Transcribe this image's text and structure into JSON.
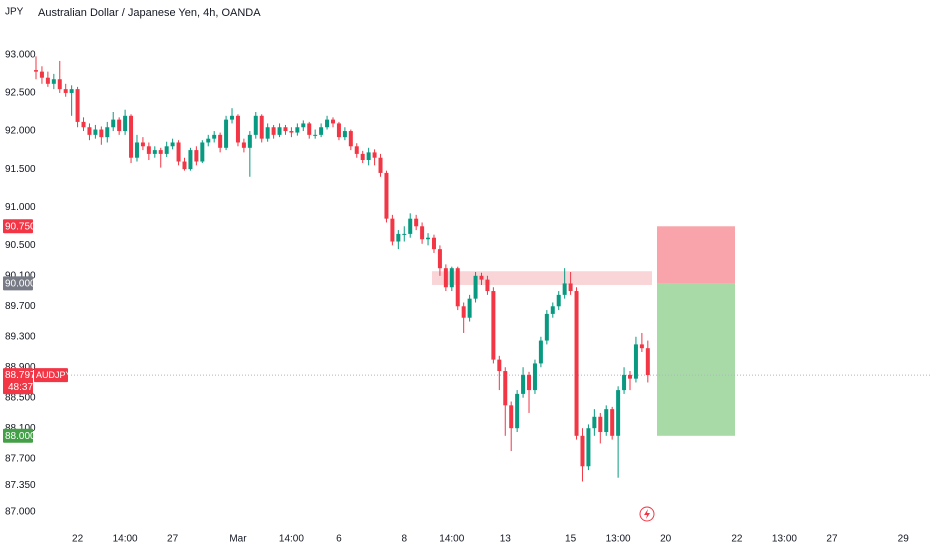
{
  "chart_data": {
    "type": "candlestick",
    "title": "Australian Dollar / Japanese Yen, 4h, OANDA",
    "currency": "JPY",
    "ylim": [
      86.79,
      93.72
    ],
    "yticks": [
      {
        "value": 93,
        "label": "93.000"
      },
      {
        "value": 92.5,
        "label": "92.500"
      },
      {
        "value": 92,
        "label": "92.000"
      },
      {
        "value": 91.5,
        "label": "91.500"
      },
      {
        "value": 91,
        "label": "91.000"
      },
      {
        "value": 90.5,
        "label": "90.500"
      },
      {
        "value": 90.1,
        "label": "90.100"
      },
      {
        "value": 89.7,
        "label": "89.700"
      },
      {
        "value": 89.3,
        "label": "89.300"
      },
      {
        "value": 88.9,
        "label": "88.900"
      },
      {
        "value": 88.5,
        "label": "88.500"
      },
      {
        "value": 88.1,
        "label": "88.100"
      },
      {
        "value": 87.7,
        "label": "87.700"
      },
      {
        "value": 87.35,
        "label": "87.350"
      },
      {
        "value": 87,
        "label": "87.000"
      }
    ],
    "grid": false,
    "up_color": "#089981",
    "down_color": "#f23645",
    "categories": [
      null,
      null,
      null,
      null,
      null,
      null,
      null,
      "22",
      null,
      null,
      null,
      null,
      null,
      null,
      null,
      "14:00",
      null,
      null,
      null,
      null,
      null,
      null,
      null,
      "27",
      null,
      null,
      null,
      null,
      null,
      null,
      null,
      null,
      null,
      null,
      "Mar",
      null,
      null,
      null,
      null,
      null,
      null,
      null,
      null,
      "14:00",
      null,
      null,
      null,
      null,
      null,
      null,
      null,
      "6",
      null,
      null,
      null,
      null,
      null,
      null,
      null,
      null,
      null,
      null,
      "8",
      null,
      null,
      null,
      null,
      null,
      null,
      null,
      "14:00",
      null,
      null,
      null,
      null,
      null,
      null,
      null,
      null,
      "13",
      null,
      null,
      null,
      null,
      null,
      null,
      null,
      null,
      null,
      null,
      "15",
      null,
      null,
      null,
      null,
      null,
      null,
      null,
      "13:00",
      null,
      null,
      null,
      null,
      null,
      null,
      null,
      "20",
      null,
      null,
      null,
      null,
      null,
      null,
      null,
      null,
      null,
      null,
      null,
      "22",
      null,
      null,
      null,
      null,
      null,
      null,
      null,
      "13:00",
      null,
      null,
      null,
      null,
      null,
      null,
      null,
      "27",
      null,
      null,
      null,
      null,
      null,
      null,
      null,
      null,
      null,
      null,
      null,
      "29",
      null,
      null,
      null,
      null
    ],
    "candles": [
      [
        92.8,
        92.98,
        92.68,
        92.78
      ],
      [
        92.78,
        92.85,
        92.62,
        92.7
      ],
      [
        92.7,
        92.78,
        92.58,
        92.62
      ],
      [
        92.62,
        92.75,
        92.55,
        92.68
      ],
      [
        92.68,
        92.92,
        92.5,
        92.55
      ],
      [
        92.55,
        92.62,
        92.45,
        92.5
      ],
      [
        92.5,
        92.6,
        92.2,
        92.55
      ],
      [
        92.55,
        92.58,
        92.05,
        92.12
      ],
      [
        92.12,
        92.18,
        92.0,
        92.05
      ],
      [
        92.05,
        92.1,
        91.88,
        91.95
      ],
      [
        91.95,
        92.08,
        91.9,
        92.02
      ],
      [
        92.02,
        92.06,
        91.82,
        91.92
      ],
      [
        91.92,
        92.12,
        91.85,
        92.05
      ],
      [
        92.05,
        92.25,
        92.0,
        92.15
      ],
      [
        92.15,
        92.18,
        91.95,
        92.0
      ],
      [
        92.0,
        92.28,
        91.95,
        92.2
      ],
      [
        92.2,
        92.22,
        91.58,
        91.65
      ],
      [
        91.65,
        91.95,
        91.6,
        91.85
      ],
      [
        91.85,
        91.92,
        91.75,
        91.8
      ],
      [
        91.8,
        91.85,
        91.62,
        91.7
      ],
      [
        91.7,
        91.8,
        91.65,
        91.75
      ],
      [
        91.75,
        91.78,
        91.52,
        91.7
      ],
      [
        91.7,
        91.86,
        91.66,
        91.8
      ],
      [
        91.8,
        91.9,
        91.76,
        91.85
      ],
      [
        91.85,
        91.88,
        91.55,
        91.6
      ],
      [
        91.6,
        91.65,
        91.48,
        91.5
      ],
      [
        91.5,
        91.78,
        91.48,
        91.75
      ],
      [
        91.75,
        91.8,
        91.55,
        91.6
      ],
      [
        91.6,
        91.88,
        91.58,
        91.85
      ],
      [
        91.85,
        91.95,
        91.8,
        91.9
      ],
      [
        91.9,
        92.0,
        91.85,
        91.95
      ],
      [
        91.95,
        91.98,
        91.72,
        91.78
      ],
      [
        91.78,
        92.2,
        91.75,
        92.15
      ],
      [
        92.15,
        92.3,
        92.1,
        92.2
      ],
      [
        92.2,
        92.22,
        91.8,
        91.85
      ],
      [
        91.85,
        91.9,
        91.72,
        91.78
      ],
      [
        91.78,
        92.0,
        91.4,
        91.95
      ],
      [
        91.95,
        92.25,
        91.9,
        92.2
      ],
      [
        92.2,
        92.22,
        91.85,
        91.9
      ],
      [
        91.9,
        92.1,
        91.86,
        92.05
      ],
      [
        92.05,
        92.08,
        91.9,
        91.95
      ],
      [
        91.95,
        92.1,
        91.92,
        92.05
      ],
      [
        92.05,
        92.08,
        91.95,
        92.0
      ],
      [
        92.0,
        92.05,
        91.92,
        91.98
      ],
      [
        91.98,
        92.1,
        91.94,
        92.05
      ],
      [
        92.05,
        92.14,
        92.0,
        92.1
      ],
      [
        92.1,
        92.12,
        91.9,
        91.95
      ],
      [
        91.95,
        92.02,
        91.9,
        91.95
      ],
      [
        91.95,
        92.1,
        91.92,
        92.05
      ],
      [
        92.05,
        92.2,
        92.02,
        92.15
      ],
      [
        92.15,
        92.18,
        92.05,
        92.1
      ],
      [
        92.1,
        92.12,
        91.88,
        91.92
      ],
      [
        91.92,
        92.05,
        91.88,
        92.0
      ],
      [
        92.0,
        92.02,
        91.75,
        91.8
      ],
      [
        91.8,
        91.84,
        91.65,
        91.7
      ],
      [
        91.7,
        91.74,
        91.58,
        91.62
      ],
      [
        91.62,
        91.78,
        91.55,
        91.72
      ],
      [
        91.72,
        91.76,
        91.55,
        91.65
      ],
      [
        91.65,
        91.7,
        91.4,
        91.45
      ],
      [
        91.45,
        91.48,
        90.8,
        90.85
      ],
      [
        90.85,
        90.9,
        90.5,
        90.55
      ],
      [
        90.55,
        90.7,
        90.45,
        90.65
      ],
      [
        90.65,
        90.75,
        90.55,
        90.65
      ],
      [
        90.65,
        90.92,
        90.6,
        90.85
      ],
      [
        90.85,
        90.9,
        90.7,
        90.75
      ],
      [
        90.75,
        90.8,
        90.52,
        90.58
      ],
      [
        90.58,
        90.66,
        90.5,
        90.6
      ],
      [
        90.6,
        90.64,
        90.4,
        90.45
      ],
      [
        90.45,
        90.5,
        90.1,
        90.2
      ],
      [
        90.2,
        90.25,
        89.9,
        89.95
      ],
      [
        89.95,
        90.22,
        89.9,
        90.2
      ],
      [
        90.2,
        90.22,
        89.65,
        89.7
      ],
      [
        89.7,
        89.75,
        89.35,
        89.55
      ],
      [
        89.55,
        89.85,
        89.5,
        89.8
      ],
      [
        89.8,
        90.15,
        89.75,
        90.1
      ],
      [
        90.1,
        90.14,
        89.98,
        90.05
      ],
      [
        90.05,
        90.1,
        89.85,
        89.9
      ],
      [
        89.9,
        89.95,
        88.95,
        89.0
      ],
      [
        89.0,
        89.05,
        88.6,
        88.85
      ],
      [
        88.85,
        88.9,
        88.0,
        88.4
      ],
      [
        88.4,
        88.45,
        87.8,
        88.1
      ],
      [
        88.1,
        88.6,
        88.05,
        88.55
      ],
      [
        88.55,
        88.9,
        88.5,
        88.8
      ],
      [
        88.8,
        88.84,
        88.3,
        88.6
      ],
      [
        88.6,
        89.0,
        88.55,
        88.95
      ],
      [
        88.95,
        89.3,
        88.9,
        89.25
      ],
      [
        89.25,
        89.65,
        89.2,
        89.6
      ],
      [
        89.6,
        89.75,
        89.55,
        89.7
      ],
      [
        89.7,
        89.9,
        89.65,
        89.85
      ],
      [
        89.85,
        90.2,
        89.8,
        90.0
      ],
      [
        90.0,
        90.15,
        89.85,
        89.9
      ],
      [
        89.9,
        89.95,
        87.95,
        88.0
      ],
      [
        88.0,
        88.1,
        87.4,
        87.6
      ],
      [
        87.6,
        88.15,
        87.55,
        88.1
      ],
      [
        88.1,
        88.35,
        88.0,
        88.25
      ],
      [
        88.25,
        88.3,
        87.9,
        88.05
      ],
      [
        88.05,
        88.4,
        88.0,
        88.35
      ],
      [
        88.35,
        88.38,
        87.95,
        88.0
      ],
      [
        88.0,
        88.65,
        87.45,
        88.6
      ],
      [
        88.6,
        88.9,
        88.55,
        88.8
      ],
      [
        88.8,
        88.85,
        88.6,
        88.75
      ],
      [
        88.75,
        89.3,
        88.7,
        89.2
      ],
      [
        89.2,
        89.35,
        89.1,
        89.15
      ],
      [
        89.15,
        89.25,
        88.7,
        88.797
      ],
      null,
      null,
      null,
      null,
      null,
      null,
      null,
      null,
      null,
      null,
      null,
      null,
      null,
      null,
      null,
      null,
      null,
      null,
      null,
      null,
      null,
      null,
      null,
      null,
      null,
      null,
      null,
      null,
      null,
      null,
      null,
      null,
      null,
      null,
      null,
      null,
      null,
      null,
      null,
      null,
      null,
      null,
      null,
      null,
      null,
      null,
      null
    ],
    "zone": {
      "low": 89.98,
      "high": 90.16,
      "color": "#f8d0d3"
    },
    "price_labels": [
      {
        "value": 90.75,
        "label": "90.750",
        "color": "#f23645"
      },
      {
        "value": 90,
        "label": "90.000",
        "color": "#787b86"
      },
      {
        "value": 88,
        "label": "88.000",
        "color": "#43a047"
      }
    ],
    "position_colors": [
      "#f9a3aa",
      "#a8daa8"
    ],
    "last": {
      "value": 88.797,
      "label": "88.797",
      "countdown": "48:37",
      "symbol": "AUDJPY",
      "color": "#f23645"
    }
  }
}
